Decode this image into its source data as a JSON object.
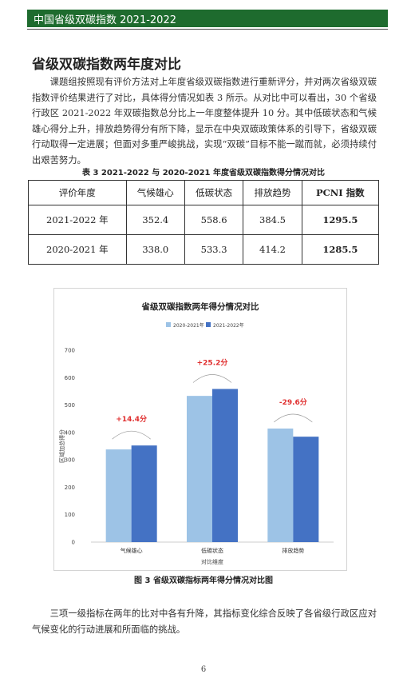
{
  "header": {
    "text": "中国省级双碳指数 2021-2022"
  },
  "section_title": "省级双碳指数两年度对比",
  "paragraph1": "课题组按照现有评价方法对上年度省级双碳指数进行重新评分，并对两次省级双碳指数评价结果进行了对比，具体得分情况如表 3 所示。从对比中可以看出，30 个省级行政区 2021-2022 年双碳指数总分比上一年度整体提升 10 分。其中低碳状态和气候雄心得分上升，排放趋势得分有所下降，显示在中央双碳政策体系的引导下，省级双碳行动取得一定进展；但面对多重严峻挑战，实现“双碳”目标不能一蹴而就，必须持续付出艰苦努力。",
  "table": {
    "caption": "表 3 2021-2022 与 2020-2021 年度省级双碳指数得分情况对比",
    "headers": [
      "评价年度",
      "气候雄心",
      "低碳状态",
      "排放趋势",
      "PCNI 指数"
    ],
    "rows": [
      [
        "2021-2022 年",
        "352.4",
        "558.6",
        "384.5",
        "1295.5"
      ],
      [
        "2020-2021 年",
        "338.0",
        "533.3",
        "414.2",
        "1285.5"
      ]
    ]
  },
  "chart_data": {
    "type": "bar",
    "title": "省级双碳指数两年得分情况对比",
    "xlabel": "对比维度",
    "ylabel": "区域加总得分",
    "categories": [
      "气候雄心",
      "低碳状态",
      "排放趋势"
    ],
    "series": [
      {
        "name": "2020-2021年",
        "values": [
          338.0,
          533.3,
          414.2
        ],
        "color": "#9dc3e6"
      },
      {
        "name": "2021-2022年",
        "values": [
          352.4,
          558.6,
          384.5
        ],
        "color": "#4472c4"
      }
    ],
    "annotations": [
      "+14.4分",
      "+25.2分",
      "-29.6分"
    ],
    "annotation_color": "#e03030",
    "ylim": [
      0,
      700
    ],
    "yticks": [
      0,
      100,
      200,
      300,
      400,
      500,
      600,
      700
    ],
    "grid": false,
    "legend": "top-center"
  },
  "figure_caption": "图 3 省级双碳指标两年得分情况对比图",
  "paragraph2": "三项一级指标在两年的比对中各有升降，其指标变化综合反映了各省级行政区应对气候变化的行动进展和所面临的挑战。",
  "page_number": "6"
}
